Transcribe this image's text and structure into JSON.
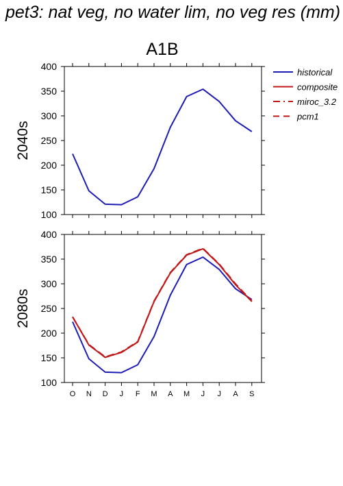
{
  "figure": {
    "title": "pet3: nat veg, no water lim, no veg res (mm)",
    "scenario": "A1B"
  },
  "legend": {
    "entries": [
      {
        "name": "historical",
        "color": "#1c1cb4",
        "style": "solid"
      },
      {
        "name": "composite",
        "color": "#c01818",
        "style": "solid"
      },
      {
        "name": "miroc_3.2",
        "color": "#c01818",
        "style": "dashdot"
      },
      {
        "name": "pcm1",
        "color": "#c01818",
        "style": "dashed"
      }
    ]
  },
  "chart_data": [
    {
      "type": "line",
      "panel_label": "2040s",
      "categories": [
        "O",
        "N",
        "D",
        "J",
        "F",
        "M",
        "A",
        "M",
        "J",
        "J",
        "A",
        "S"
      ],
      "ylim": [
        100,
        400
      ],
      "yticks": [
        100,
        150,
        200,
        250,
        300,
        350,
        400
      ],
      "show_month_labels": false,
      "series": [
        {
          "name": "historical",
          "color": "#1c1cb4",
          "style": "solid",
          "values": [
            223,
            148,
            121,
            120,
            136,
            193,
            277,
            339,
            354,
            329,
            290,
            268
          ]
        }
      ]
    },
    {
      "type": "line",
      "panel_label": "2080s",
      "categories": [
        "O",
        "N",
        "D",
        "J",
        "F",
        "M",
        "A",
        "M",
        "J",
        "J",
        "A",
        "S"
      ],
      "ylim": [
        100,
        400
      ],
      "yticks": [
        100,
        150,
        200,
        250,
        300,
        350,
        400
      ],
      "show_month_labels": true,
      "series": [
        {
          "name": "historical",
          "color": "#1c1cb4",
          "style": "solid",
          "values": [
            223,
            148,
            121,
            120,
            136,
            193,
            277,
            339,
            354,
            329,
            290,
            268
          ]
        },
        {
          "name": "composite",
          "color": "#c01818",
          "style": "solid",
          "values": [
            233,
            176,
            151,
            161,
            182,
            264,
            322,
            358,
            371,
            339,
            298,
            264
          ]
        },
        {
          "name": "miroc_3.2",
          "color": "#c01818",
          "style": "dashdot",
          "values": [
            233,
            176,
            151,
            161,
            182,
            264,
            322,
            358,
            371,
            339,
            298,
            264
          ]
        },
        {
          "name": "pcm1",
          "color": "#c01818",
          "style": "dashed",
          "values": [
            233,
            177,
            152,
            162,
            183,
            265,
            323,
            359,
            372,
            340,
            300,
            265
          ]
        }
      ]
    }
  ]
}
